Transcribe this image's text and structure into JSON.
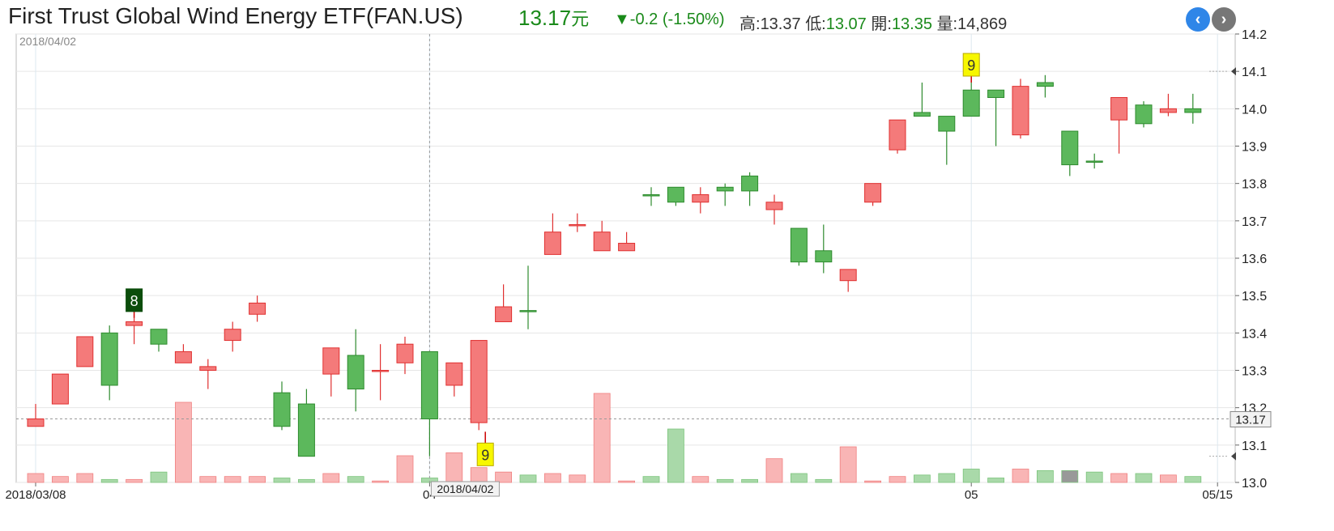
{
  "header": {
    "title": "First Trust Global Wind Energy ETF(FAN.US)",
    "price": "13.17",
    "currency": "元",
    "change": "▼-0.2 (-1.50%)",
    "high_label": "高:",
    "high_value": "13.37",
    "low_label": "低:",
    "low_value": "13.07",
    "open_label": "開:",
    "open_value": "13.35",
    "volume_label": "量:",
    "volume_value": "14,869"
  },
  "nav": {
    "prev_icon": "chevron-left-icon",
    "next_icon": "chevron-right-icon"
  },
  "colors": {
    "up": "#f47a7a",
    "up_border": "#e03030",
    "down": "#5cb85c",
    "down_border": "#2e8b2e",
    "vol_up": "#f9b5b5",
    "vol_down": "#a9d9a9",
    "vol_last": "#999999"
  },
  "chart_data": {
    "type": "candlestick",
    "crosshair_date": "2018/04/02",
    "top_left_label": "2018/04/02",
    "last_price_label": "13.17",
    "ylim": [
      13.0,
      14.2
    ],
    "yticks": [
      "13.0",
      "13.1",
      "13.2",
      "13.3",
      "13.4",
      "13.5",
      "13.6",
      "13.7",
      "13.8",
      "13.9",
      "14.0",
      "14.1",
      "14.2"
    ],
    "xticks": [
      {
        "index": 0,
        "label": "2018/03/08"
      },
      {
        "index": 16,
        "label": "04"
      },
      {
        "index": 38,
        "label": "05"
      },
      {
        "index": 48,
        "label": "05/15"
      }
    ],
    "crosshair_index": 16,
    "markers": [
      {
        "index": 4,
        "label": "8",
        "style": "dark",
        "at": "above"
      },
      {
        "index": 18,
        "label": "9",
        "style": "yellow",
        "at": "below"
      },
      {
        "index": 38,
        "label": "9",
        "style": "yellow",
        "at": "above"
      }
    ],
    "volume_max": 30,
    "candles": [
      {
        "o": 13.15,
        "h": 13.21,
        "l": 13.15,
        "c": 13.17,
        "dir": "up",
        "v": 3
      },
      {
        "o": 13.21,
        "h": 13.29,
        "l": 13.21,
        "c": 13.29,
        "dir": "up",
        "v": 2
      },
      {
        "o": 13.31,
        "h": 13.39,
        "l": 13.31,
        "c": 13.39,
        "dir": "up",
        "v": 3
      },
      {
        "o": 13.4,
        "h": 13.42,
        "l": 13.22,
        "c": 13.26,
        "dir": "down",
        "v": 1
      },
      {
        "o": 13.42,
        "h": 13.44,
        "l": 13.37,
        "c": 13.43,
        "dir": "up",
        "v": 1
      },
      {
        "o": 13.41,
        "h": 13.41,
        "l": 13.35,
        "c": 13.37,
        "dir": "down",
        "v": 3.5
      },
      {
        "o": 13.32,
        "h": 13.37,
        "l": 13.32,
        "c": 13.35,
        "dir": "up",
        "v": 27
      },
      {
        "o": 13.3,
        "h": 13.33,
        "l": 13.25,
        "c": 13.31,
        "dir": "up",
        "v": 2
      },
      {
        "o": 13.38,
        "h": 13.43,
        "l": 13.35,
        "c": 13.41,
        "dir": "up",
        "v": 2
      },
      {
        "o": 13.45,
        "h": 13.5,
        "l": 13.43,
        "c": 13.48,
        "dir": "up",
        "v": 2
      },
      {
        "o": 13.24,
        "h": 13.27,
        "l": 13.14,
        "c": 13.15,
        "dir": "down",
        "v": 1.5
      },
      {
        "o": 13.21,
        "h": 13.25,
        "l": 13.07,
        "c": 13.07,
        "dir": "down",
        "v": 1
      },
      {
        "o": 13.29,
        "h": 13.36,
        "l": 13.23,
        "c": 13.36,
        "dir": "up",
        "v": 3
      },
      {
        "o": 13.34,
        "h": 13.41,
        "l": 13.19,
        "c": 13.25,
        "dir": "down",
        "v": 2
      },
      {
        "o": 13.3,
        "h": 13.37,
        "l": 13.22,
        "c": 13.3,
        "dir": "up",
        "v": 0.5
      },
      {
        "o": 13.32,
        "h": 13.39,
        "l": 13.29,
        "c": 13.37,
        "dir": "up",
        "v": 9
      },
      {
        "o": 13.35,
        "h": 13.35,
        "l": 13.07,
        "c": 13.17,
        "dir": "down",
        "v": 1.5
      },
      {
        "o": 13.26,
        "h": 13.32,
        "l": 13.23,
        "c": 13.32,
        "dir": "up",
        "v": 10
      },
      {
        "o": 13.16,
        "h": 13.38,
        "l": 13.14,
        "c": 13.38,
        "dir": "up",
        "v": 5
      },
      {
        "o": 13.43,
        "h": 13.53,
        "l": 13.43,
        "c": 13.47,
        "dir": "up",
        "v": 3.5
      },
      {
        "o": 13.46,
        "h": 13.58,
        "l": 13.41,
        "c": 13.46,
        "dir": "down",
        "v": 2.5
      },
      {
        "o": 13.61,
        "h": 13.72,
        "l": 13.61,
        "c": 13.67,
        "dir": "up",
        "v": 3
      },
      {
        "o": 13.69,
        "h": 13.72,
        "l": 13.67,
        "c": 13.69,
        "dir": "up",
        "v": 2.5
      },
      {
        "o": 13.62,
        "h": 13.7,
        "l": 13.62,
        "c": 13.67,
        "dir": "up",
        "v": 30
      },
      {
        "o": 13.62,
        "h": 13.67,
        "l": 13.62,
        "c": 13.64,
        "dir": "up",
        "v": 0.5
      },
      {
        "o": 13.77,
        "h": 13.79,
        "l": 13.74,
        "c": 13.77,
        "dir": "down",
        "v": 2
      },
      {
        "o": 13.79,
        "h": 13.79,
        "l": 13.74,
        "c": 13.75,
        "dir": "down",
        "v": 18
      },
      {
        "o": 13.75,
        "h": 13.79,
        "l": 13.72,
        "c": 13.77,
        "dir": "up",
        "v": 2
      },
      {
        "o": 13.79,
        "h": 13.8,
        "l": 13.74,
        "c": 13.78,
        "dir": "down",
        "v": 1
      },
      {
        "o": 13.82,
        "h": 13.83,
        "l": 13.74,
        "c": 13.78,
        "dir": "down",
        "v": 1
      },
      {
        "o": 13.73,
        "h": 13.77,
        "l": 13.69,
        "c": 13.75,
        "dir": "up",
        "v": 8
      },
      {
        "o": 13.68,
        "h": 13.68,
        "l": 13.58,
        "c": 13.59,
        "dir": "down",
        "v": 3
      },
      {
        "o": 13.62,
        "h": 13.69,
        "l": 13.56,
        "c": 13.59,
        "dir": "down",
        "v": 1
      },
      {
        "o": 13.54,
        "h": 13.57,
        "l": 13.51,
        "c": 13.57,
        "dir": "up",
        "v": 12
      },
      {
        "o": 13.75,
        "h": 13.8,
        "l": 13.74,
        "c": 13.8,
        "dir": "up",
        "v": 0.5
      },
      {
        "o": 13.89,
        "h": 13.97,
        "l": 13.88,
        "c": 13.97,
        "dir": "up",
        "v": 2
      },
      {
        "o": 13.99,
        "h": 14.07,
        "l": 13.98,
        "c": 13.98,
        "dir": "down",
        "v": 2.5
      },
      {
        "o": 13.98,
        "h": 13.98,
        "l": 13.85,
        "c": 13.94,
        "dir": "down",
        "v": 3
      },
      {
        "o": 14.05,
        "h": 14.07,
        "l": 13.98,
        "c": 13.98,
        "dir": "down",
        "v": 4.5
      },
      {
        "o": 14.05,
        "h": 14.05,
        "l": 13.9,
        "c": 14.03,
        "dir": "down",
        "v": 1.5
      },
      {
        "o": 13.93,
        "h": 14.08,
        "l": 13.92,
        "c": 14.06,
        "dir": "up",
        "v": 4.5
      },
      {
        "o": 14.07,
        "h": 14.09,
        "l": 14.03,
        "c": 14.06,
        "dir": "down",
        "v": 4
      },
      {
        "o": 13.94,
        "h": 13.94,
        "l": 13.82,
        "c": 13.85,
        "dir": "down",
        "v": 4
      },
      {
        "o": 13.86,
        "h": 13.88,
        "l": 13.84,
        "c": 13.86,
        "dir": "down",
        "v": 3.5
      },
      {
        "o": 13.97,
        "h": 14.03,
        "l": 13.88,
        "c": 14.03,
        "dir": "up",
        "v": 3
      },
      {
        "o": 14.01,
        "h": 14.02,
        "l": 13.95,
        "c": 13.96,
        "dir": "down",
        "v": 3
      },
      {
        "o": 13.99,
        "h": 14.04,
        "l": 13.98,
        "c": 14.0,
        "dir": "up",
        "v": 2.5
      },
      {
        "o": 14.0,
        "h": 14.04,
        "l": 13.96,
        "c": 13.99,
        "dir": "down",
        "v": 2
      }
    ]
  }
}
